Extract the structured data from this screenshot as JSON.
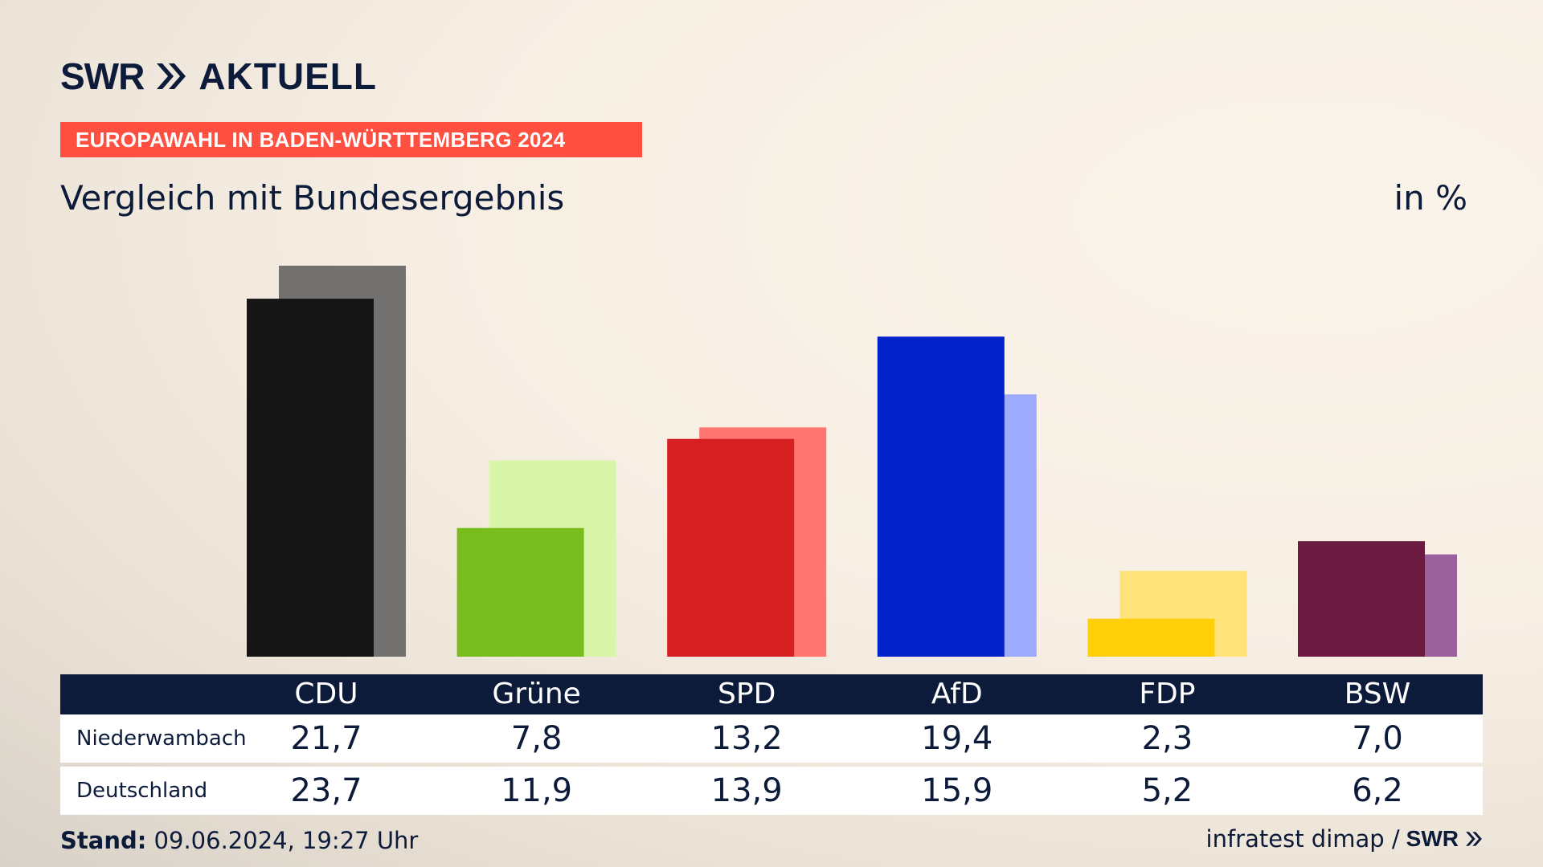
{
  "brand": {
    "swr": "SWR",
    "aktuell": "AKTUELL",
    "footer_swr": "SWR"
  },
  "topic": "EUROPAWAHL IN BADEN-WÜRTTEMBERG 2024",
  "subtitle": "Vergleich mit Bundesergebnis",
  "unit": "in %",
  "colors": {
    "navy": "#0d1b3a",
    "badge": "#ff4f40"
  },
  "chart_data": {
    "type": "bar",
    "title": "Vergleich mit Bundesergebnis",
    "ylabel": "in %",
    "ylim": [
      0,
      25
    ],
    "grid": false,
    "categories": [
      "CDU",
      "Grüne",
      "SPD",
      "AfD",
      "FDP",
      "BSW"
    ],
    "series": [
      {
        "name": "Niederwambach",
        "values": [
          21.7,
          7.8,
          13.2,
          19.4,
          2.3,
          7.0
        ],
        "colors": [
          "#151515",
          "#78bc1e",
          "#d71f21",
          "#0022c8",
          "#ffcf0a",
          "#6b1a40"
        ]
      },
      {
        "name": "Deutschland",
        "values": [
          23.7,
          11.9,
          13.9,
          15.9,
          5.2,
          6.2
        ],
        "colors": [
          "#737170",
          "#d8f5aa",
          "#ff7570",
          "#9eaaff",
          "#ffe27a",
          "#9b619c"
        ]
      }
    ]
  },
  "table": {
    "rows": [
      {
        "label": "Niederwambach",
        "values": [
          "21,7",
          "7,8",
          "13,2",
          "19,4",
          "2,3",
          "7,0"
        ]
      },
      {
        "label": "Deutschland",
        "values": [
          "23,7",
          "11,9",
          "13,9",
          "15,9",
          "5,2",
          "6,2"
        ]
      }
    ]
  },
  "footer": {
    "stand_label": "Stand:",
    "stand_value": "09.06.2024, 19:27 Uhr",
    "source": "infratest dimap /"
  }
}
